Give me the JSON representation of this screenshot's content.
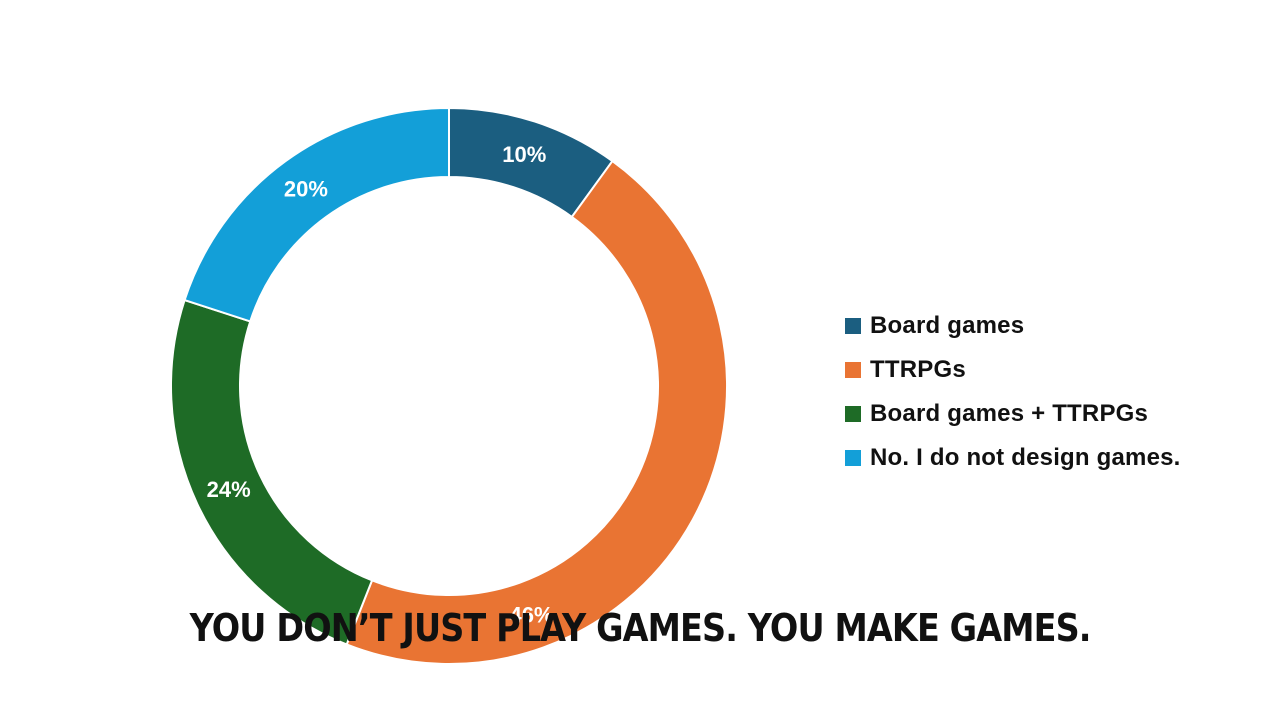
{
  "chart_data": {
    "type": "pie",
    "donut": true,
    "categories": [
      "Board games",
      "TTRPGs",
      "Board games + TTRPGs",
      "No. I do not design games."
    ],
    "values": [
      10,
      46,
      24,
      20
    ],
    "data_labels": [
      "10%",
      "46%",
      "24%",
      "20%"
    ],
    "colors": [
      "#1b5e80",
      "#e97433",
      "#1e6b26",
      "#139fd8"
    ],
    "legend_position": "right"
  },
  "caption": "YOU DON’T JUST PLAY GAMES. YOU MAKE GAMES."
}
